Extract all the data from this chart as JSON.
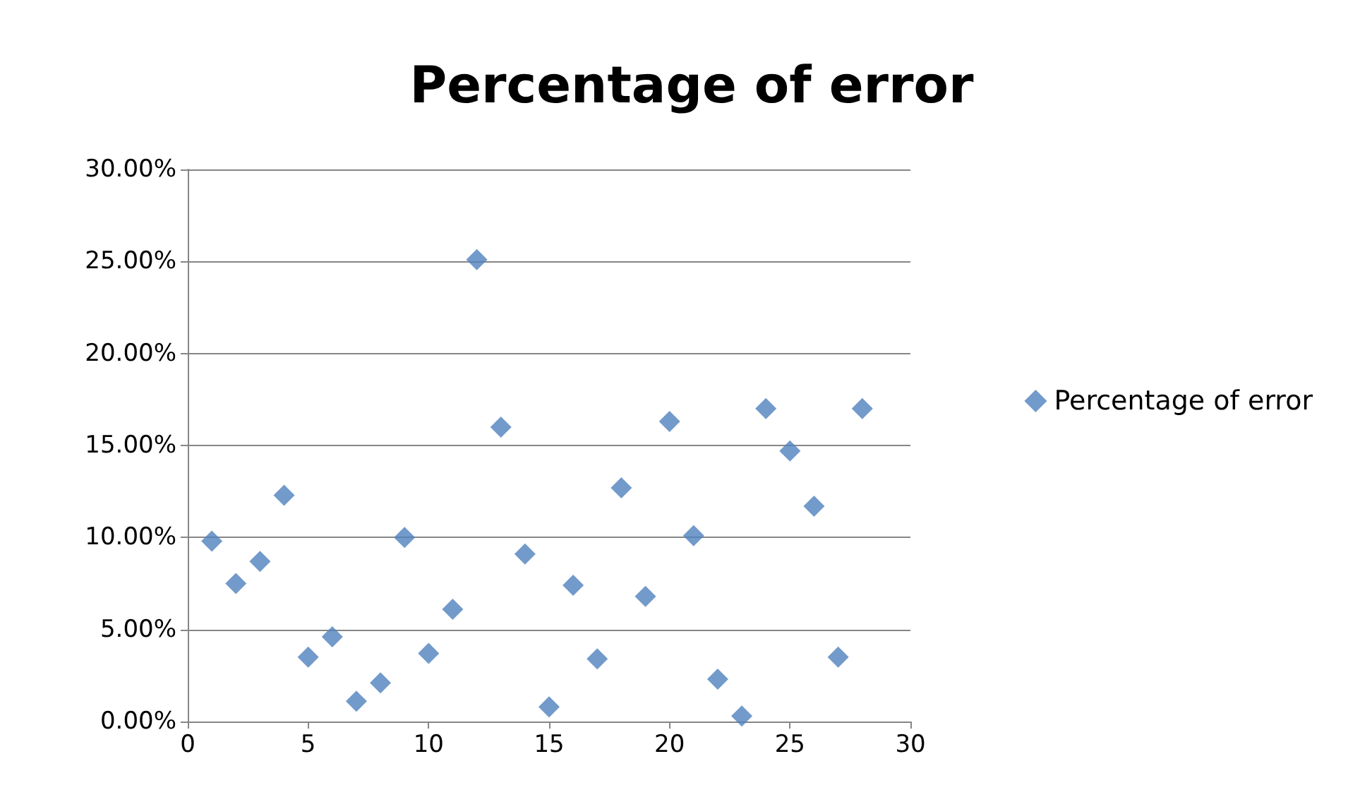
{
  "chart_data": {
    "type": "scatter",
    "title": "Percentage of error",
    "x": [
      1,
      2,
      3,
      4,
      5,
      6,
      7,
      8,
      9,
      10,
      11,
      12,
      13,
      14,
      15,
      16,
      17,
      18,
      19,
      20,
      21,
      22,
      23,
      24,
      25,
      26,
      27,
      28
    ],
    "series": [
      {
        "name": "Percentage of error",
        "color": "#4f81bd",
        "values": [
          9.8,
          7.5,
          8.7,
          12.3,
          3.5,
          4.6,
          1.1,
          2.1,
          10.0,
          3.7,
          6.1,
          25.1,
          16.0,
          9.1,
          0.8,
          7.4,
          3.4,
          12.7,
          6.8,
          16.3,
          10.1,
          2.3,
          0.3,
          17.0,
          14.7,
          11.7,
          3.5,
          17.0
        ]
      }
    ],
    "xlim": [
      0,
      30
    ],
    "xticks": [
      0,
      5,
      10,
      15,
      20,
      25,
      30
    ],
    "ylim": [
      0,
      30
    ],
    "yticks": [
      {
        "value": 0,
        "label": "0.00%"
      },
      {
        "value": 5,
        "label": "5.00%"
      },
      {
        "value": 10,
        "label": "10.00%"
      },
      {
        "value": 15,
        "label": "15.00%"
      },
      {
        "value": 20,
        "label": "20.00%"
      },
      {
        "value": 25,
        "label": "25.00%"
      },
      {
        "value": 30,
        "label": "30.00%"
      }
    ],
    "grid": "y",
    "legend": "right",
    "marker": "diamond"
  }
}
